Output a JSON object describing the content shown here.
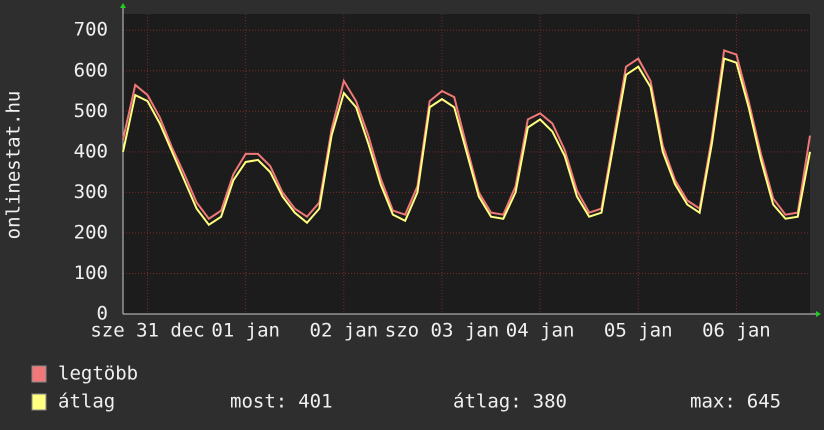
{
  "chart_data": {
    "type": "line",
    "y_label": "onlinestat.hu",
    "xlim": [
      0,
      168
    ],
    "xticks": [
      {
        "value": 6,
        "label": "sze 31 dec"
      },
      {
        "value": 30,
        "label": "01 jan"
      },
      {
        "value": 54,
        "label": "02 jan"
      },
      {
        "value": 78,
        "label": "szo 03 jan"
      },
      {
        "value": 102,
        "label": "04 jan"
      },
      {
        "value": 126,
        "label": "05 jan"
      },
      {
        "value": 150,
        "label": "06 jan"
      }
    ],
    "ylim": [
      0,
      740
    ],
    "yticks": [
      0,
      100,
      200,
      300,
      400,
      500,
      600,
      700
    ],
    "grid": true,
    "x": [
      0,
      3,
      6,
      9,
      12,
      15,
      18,
      21,
      24,
      27,
      30,
      33,
      36,
      39,
      42,
      45,
      48,
      51,
      54,
      57,
      60,
      63,
      66,
      69,
      72,
      75,
      78,
      81,
      84,
      87,
      90,
      93,
      96,
      99,
      102,
      105,
      108,
      111,
      114,
      117,
      120,
      123,
      126,
      129,
      132,
      135,
      138,
      141,
      144,
      147,
      150,
      153,
      156,
      159,
      162,
      165,
      168
    ],
    "series": [
      {
        "name": "legtöbb",
        "color": "#f07878",
        "values": [
          430,
          565,
          540,
          485,
          410,
          345,
          275,
          235,
          255,
          345,
          395,
          395,
          365,
          300,
          260,
          240,
          275,
          455,
          575,
          525,
          440,
          335,
          255,
          245,
          315,
          525,
          550,
          535,
          415,
          300,
          250,
          245,
          315,
          480,
          495,
          470,
          405,
          305,
          250,
          260,
          435,
          610,
          630,
          575,
          415,
          330,
          280,
          260,
          435,
          650,
          640,
          525,
          395,
          285,
          245,
          250,
          440
        ]
      },
      {
        "name": "átlag",
        "color": "#ffff80",
        "values": [
          400,
          540,
          525,
          470,
          400,
          330,
          260,
          220,
          240,
          330,
          375,
          380,
          350,
          290,
          250,
          225,
          260,
          440,
          545,
          510,
          420,
          320,
          245,
          230,
          300,
          510,
          530,
          510,
          400,
          290,
          240,
          235,
          300,
          460,
          480,
          450,
          390,
          290,
          240,
          250,
          420,
          590,
          610,
          560,
          400,
          320,
          270,
          250,
          420,
          630,
          620,
          510,
          380,
          270,
          235,
          240,
          400
        ]
      }
    ],
    "legend": "bottom-left",
    "stats": [
      {
        "label": "most:",
        "value": 401
      },
      {
        "label": "átlag:",
        "value": 380
      },
      {
        "label": "max:",
        "value": 645
      }
    ]
  }
}
